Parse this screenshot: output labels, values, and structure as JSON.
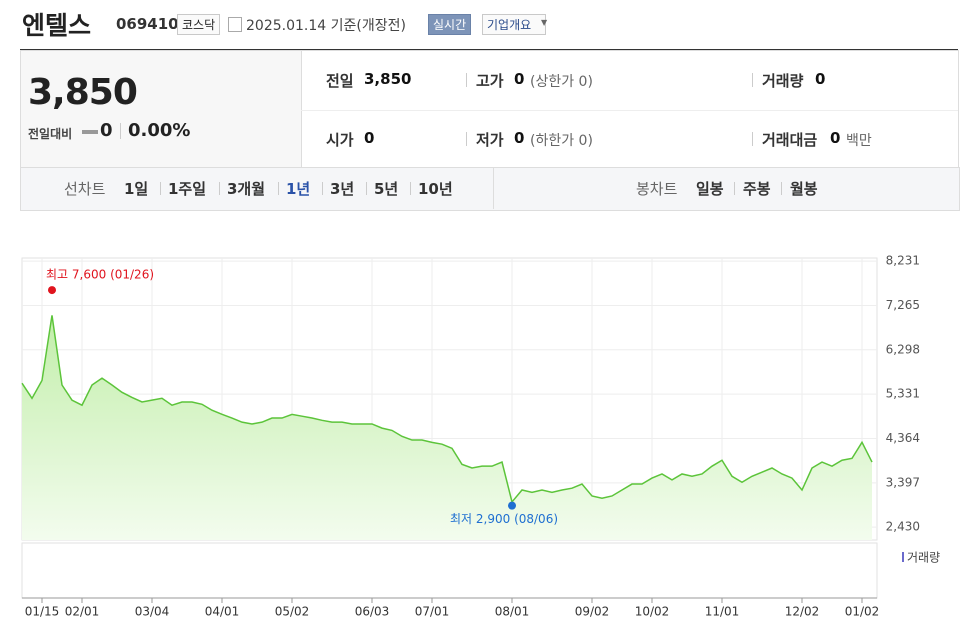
{
  "header": {
    "name": "엔텔스",
    "code": "069410",
    "market": "코스닥",
    "date": "2025.01.14 기준(개장전)",
    "realtime": "실시간",
    "company_info": "기업개요"
  },
  "summary": {
    "price": "3,850",
    "change_label": "전일대비",
    "change": "0",
    "change_pct": "0.00%",
    "items": [
      {
        "label": "전일",
        "value": "3,850"
      },
      {
        "label": "고가",
        "value": "0",
        "note": "(상한가 0)"
      },
      {
        "label": "거래량",
        "value": "0"
      },
      {
        "label": "시가",
        "value": "0"
      },
      {
        "label": "저가",
        "value": "0",
        "note": "(하한가 0)"
      },
      {
        "label": "거래대금",
        "value": "0",
        "note": "백만"
      }
    ]
  },
  "tabs": {
    "line_label": "선차트",
    "line_periods": [
      "1일",
      "1주일",
      "3개월",
      "1년",
      "3년",
      "5년",
      "10년"
    ],
    "selected": 3,
    "candle_label": "봉차트",
    "candle_periods": [
      "일봉",
      "주봉",
      "월봉"
    ]
  },
  "chart_data": {
    "type": "line",
    "color": "#5cc43a",
    "grid": true,
    "categories": [
      null,
      null,
      "01/15",
      null,
      null,
      null,
      "02/01",
      null,
      null,
      null,
      null,
      null,
      null,
      "03/04",
      null,
      null,
      null,
      null,
      null,
      null,
      "04/01",
      null,
      null,
      null,
      null,
      null,
      null,
      "05/02",
      null,
      null,
      null,
      null,
      null,
      null,
      null,
      "06/03",
      null,
      null,
      null,
      null,
      null,
      "07/01",
      null,
      null,
      null,
      null,
      null,
      null,
      null,
      "08/01",
      null,
      null,
      null,
      null,
      null,
      null,
      null,
      "09/02",
      null,
      null,
      null,
      null,
      null,
      "10/02",
      null,
      null,
      null,
      null,
      null,
      null,
      "11/01",
      null,
      null,
      null,
      null,
      null,
      null,
      null,
      "12/02",
      null,
      null,
      null,
      null,
      null,
      "01/02",
      null
    ],
    "values": [
      5570,
      5240,
      5630,
      7050,
      5530,
      5200,
      5090,
      5530,
      5680,
      5530,
      5370,
      5260,
      5160,
      5200,
      5240,
      5090,
      5160,
      5160,
      5110,
      4980,
      4890,
      4810,
      4720,
      4680,
      4720,
      4810,
      4810,
      4890,
      4850,
      4810,
      4760,
      4720,
      4720,
      4680,
      4680,
      4680,
      4590,
      4540,
      4410,
      4330,
      4330,
      4280,
      4240,
      4150,
      3800,
      3720,
      3760,
      3760,
      3850,
      2980,
      3240,
      3190,
      3240,
      3190,
      3240,
      3280,
      3370,
      3110,
      3060,
      3110,
      3240,
      3370,
      3370,
      3500,
      3590,
      3460,
      3590,
      3540,
      3590,
      3760,
      3890,
      3540,
      3410,
      3540,
      3630,
      3720,
      3590,
      3500,
      3240,
      3720,
      3850,
      3760,
      3890,
      3930,
      4280,
      3850
    ],
    "ylim": [
      2150,
      8300
    ],
    "yticks": [
      {
        "value": 8231,
        "label": "8,231"
      },
      {
        "value": 7265,
        "label": "7,265"
      },
      {
        "value": 6298,
        "label": "6,298"
      },
      {
        "value": 5331,
        "label": "5,331"
      },
      {
        "value": 4364,
        "label": "4,364"
      },
      {
        "value": 3397,
        "label": "3,397"
      },
      {
        "value": 2430,
        "label": "2,430"
      }
    ],
    "high": {
      "text": "최고 7,600 (01/26)",
      "value": 7600,
      "color": "#e0141e"
    },
    "low": {
      "text": "최저 2,900 (08/06)",
      "value": 2900,
      "color": "#1f6fd1"
    },
    "volume_label": "거래량"
  }
}
